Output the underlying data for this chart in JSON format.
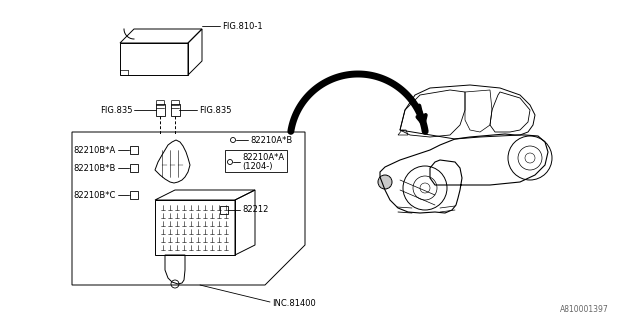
{
  "bg_color": "#ffffff",
  "line_color": "#000000",
  "watermark": "A810001397",
  "labels": {
    "fig810": "FIG.810-1",
    "fig835_left": "FIG.835",
    "fig835_right": "FIG.835",
    "part_82210AB": "82210A*B",
    "part_82210AA": "82210A*A",
    "part_82210AA_sub": "(1204-)",
    "part_82210BA": "82210B*A",
    "part_82210BB": "82210B*B",
    "part_82210BC": "82210B*C",
    "part_82212": "82212",
    "part_inc": "INC.81400"
  }
}
